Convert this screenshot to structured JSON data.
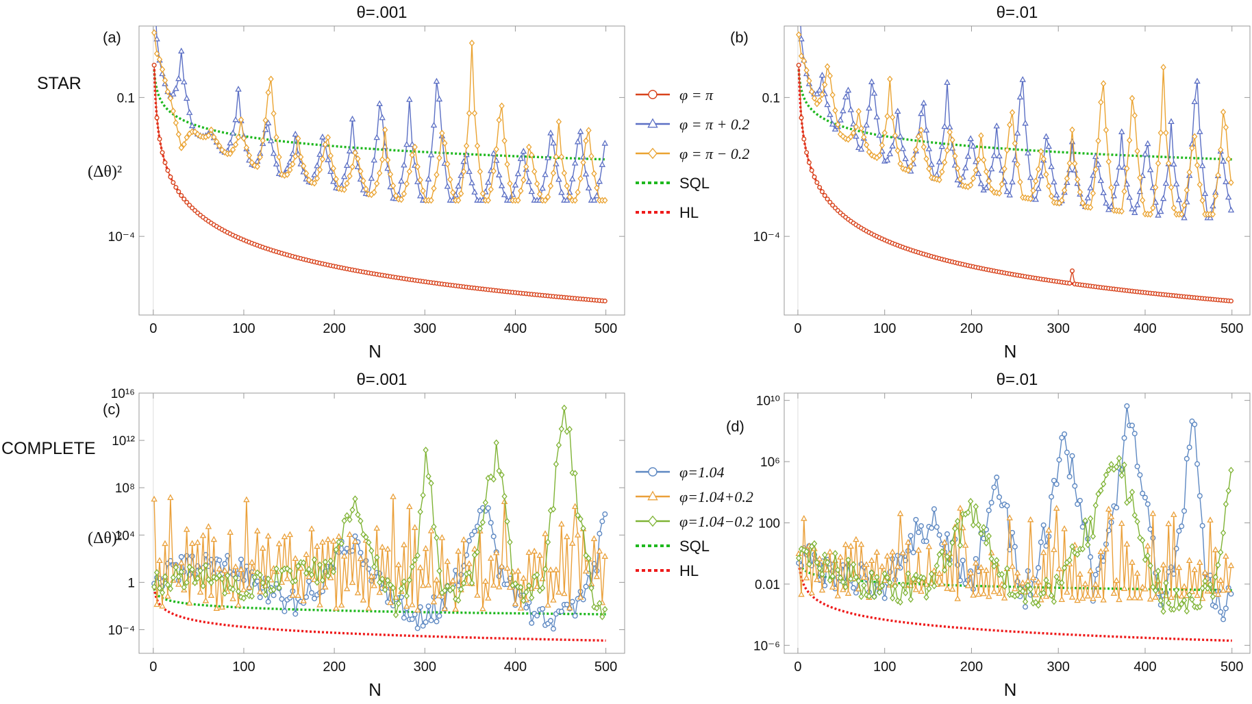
{
  "colors": {
    "red": "#d8431c",
    "blue": "#5b6fc4",
    "orange": "#eaa331",
    "green": "#1fb81f",
    "hl": "#ee1b1b",
    "cblue": "#5d88c2",
    "corange": "#eaa03a",
    "cgreen": "#7fb335"
  },
  "row_labels": {
    "star": "STAR",
    "complete": "COMPLETE"
  },
  "legend_top": [
    "φ = π",
    "φ = π + 0.2",
    "φ = π − 0.2",
    "SQL",
    "HL"
  ],
  "legend_bottom": [
    "φ=1.04",
    "φ=1.04+0.2",
    "φ=1.04−0.2",
    "SQL",
    "HL"
  ],
  "chart_data": [
    {
      "panel": "(a)",
      "type": "line",
      "title": "θ=.001",
      "xlabel": "N",
      "ylabel": "(Δθ)²",
      "xticks": [
        0,
        100,
        200,
        300,
        400,
        500
      ],
      "yticks": [
        {
          "value": 0.1,
          "label": "0.1"
        },
        {
          "value": 0.0001,
          "label": "10⁻⁴"
        }
      ],
      "yscale": "log",
      "xlim": [
        -5,
        510
      ],
      "ylim": [
        2e-06,
        3.5
      ],
      "series": [
        {
          "name": "φ = π",
          "marker": "circle",
          "kind": "hl_like",
          "x": [
            1,
            500
          ],
          "y": [
            0.5,
            4e-06
          ]
        },
        {
          "name": "φ = π + 0.2",
          "marker": "triangle",
          "kind": "peaks",
          "peaks_x": [
            31,
            63,
            94,
            126,
            157,
            188,
            220,
            251,
            283,
            314,
            345,
            377,
            408,
            440,
            471,
            502
          ],
          "peaks_y": [
            1.0,
            0.021,
            0.15,
            0.06,
            0.016,
            0.03,
            0.034,
            0.32,
            0.09,
            1.5,
            0.012,
            0.013,
            0.015,
            0.05,
            0.055,
            0.1
          ],
          "baseline_min": 0.0006
        },
        {
          "name": "φ = π − 0.2",
          "marker": "diamond",
          "kind": "peaks",
          "peaks_x": [
            3,
            32,
            64,
            97,
            129,
            160,
            192,
            224,
            256,
            288,
            320,
            352,
            384,
            416,
            448,
            480
          ],
          "peaks_y": [
            0.7,
            0.005,
            0.02,
            0.033,
            1.1,
            0.013,
            0.03,
            0.012,
            0.02,
            0.02,
            0.05,
            1.5,
            0.3,
            0.02,
            0.03,
            0.06
          ],
          "baseline_min": 0.0006
        },
        {
          "name": "SQL",
          "kind": "sql",
          "x": [
            1,
            500
          ],
          "y": [
            0.4,
            0.0046
          ]
        },
        {
          "name": "HL",
          "kind": "hl",
          "x": [
            1,
            500
          ],
          "y": [
            0.5,
            4e-06
          ]
        }
      ]
    },
    {
      "panel": "(b)",
      "type": "line",
      "title": "θ=.01",
      "xlabel": "N",
      "ylabel": "",
      "xticks": [
        0,
        100,
        200,
        300,
        400,
        500
      ],
      "yticks": [
        {
          "value": 0.1,
          "label": "0.1"
        },
        {
          "value": 0.0001,
          "label": "10⁻⁴"
        }
      ],
      "yscale": "log",
      "xlim": [
        -5,
        510
      ],
      "ylim": [
        2e-06,
        3.5
      ],
      "series": [
        {
          "name": "φ = π",
          "marker": "circle",
          "kind": "hl_like",
          "x": [
            1,
            500
          ],
          "y": [
            0.5,
            4e-06
          ],
          "spike_x": 316,
          "spike_y": 1.8e-05
        },
        {
          "name": "φ = π + 0.2",
          "marker": "triangle",
          "kind": "peaks",
          "peaks_x": [
            28,
            57,
            86,
            115,
            144,
            172,
            200,
            229,
            258,
            287,
            316,
            344,
            373,
            402,
            430,
            459,
            488
          ],
          "peaks_y": [
            0.3,
            0.32,
            0.7,
            0.05,
            0.24,
            0.21,
            0.028,
            0.024,
            1.6,
            0.04,
            0.011,
            0.012,
            0.018,
            0.031,
            0.03,
            2.0,
            0.02
          ],
          "baseline_min": 0.00025
        },
        {
          "name": "φ = π − 0.2",
          "marker": "diamond",
          "kind": "peaks",
          "peaks_x": [
            3,
            35,
            70,
            106,
            141,
            176,
            211,
            246,
            281,
            316,
            351,
            386,
            421,
            456,
            491
          ],
          "peaks_y": [
            0.6,
            1.1,
            0.05,
            0.25,
            0.04,
            0.04,
            0.015,
            0.18,
            0.015,
            0.02,
            1.5,
            0.6,
            0.45,
            0.05,
            0.25
          ],
          "baseline_min": 0.0003
        },
        {
          "name": "SQL",
          "kind": "sql",
          "x": [
            1,
            500
          ],
          "y": [
            0.4,
            0.0046
          ]
        },
        {
          "name": "HL",
          "kind": "hl",
          "x": [
            1,
            500
          ],
          "y": [
            0.5,
            4e-06
          ]
        }
      ]
    },
    {
      "panel": "(c)",
      "type": "line",
      "title": "θ=.001",
      "xlabel": "N",
      "ylabel": "(Δθ)²",
      "xticks": [
        0,
        100,
        200,
        300,
        400,
        500
      ],
      "yticks": [
        {
          "value": 1e+16,
          "label": "10¹⁶"
        },
        {
          "value": 1000000000000.0,
          "label": "10¹²"
        },
        {
          "value": 100000000.0,
          "label": "10⁸"
        },
        {
          "value": 10000.0,
          "label": "10⁴"
        },
        {
          "value": 1,
          "label": "1"
        },
        {
          "value": 0.0001,
          "label": "10⁻⁴"
        }
      ],
      "yscale": "log",
      "xlim": [
        -5,
        510
      ],
      "ylim": [
        1e-06,
        1e+16
      ],
      "series": [
        {
          "name": "φ=1.04",
          "marker": "circle",
          "kind": "random",
          "anchors_x": [
            1,
            40,
            80,
            120,
            150,
            180,
            220,
            250,
            290,
            320,
            350,
            370,
            380,
            400,
            420,
            440,
            470,
            490,
            500
          ],
          "anchors_y": [
            2,
            20,
            50,
            0.5,
            0.01,
            0.3,
            5000,
            1,
            0.001,
            0.01,
            500,
            10000000.0,
            10,
            0.1,
            0.001,
            0.001,
            0.01,
            100,
            5000000.0
          ]
        },
        {
          "name": "φ=1.04+0.2",
          "marker": "triangle",
          "kind": "random_alt",
          "anchors_x": [
            1,
            100,
            200,
            300,
            400,
            500
          ],
          "anchors_y": [
            3,
            10,
            5,
            1,
            1,
            20
          ],
          "hi": 1000000.0,
          "lo": 0.001
        },
        {
          "name": "φ=1.04−0.2",
          "marker": "diamond",
          "kind": "random",
          "anchors_x": [
            1,
            60,
            100,
            150,
            200,
            222,
            240,
            270,
            290,
            302,
            320,
            350,
            370,
            380,
            400,
            430,
            455,
            470,
            490,
            500
          ],
          "anchors_y": [
            1,
            3,
            0.5,
            2,
            30,
            10000000.0,
            100,
            0.01,
            10,
            100000000000.0,
            0.1,
            1,
            100000000.0,
            100000000000.0,
            0.1,
            1,
            1000000000000000.0,
            1000000.0,
            0.001,
            0.01
          ]
        },
        {
          "name": "SQL",
          "kind": "sql",
          "x": [
            1,
            500
          ],
          "y": [
            0.3,
            0.002
          ]
        },
        {
          "name": "HL",
          "kind": "hl",
          "x": [
            1,
            500
          ],
          "y": [
            0.35,
            1.2e-05
          ]
        }
      ]
    },
    {
      "panel": "(d)",
      "type": "line",
      "title": "θ=.01",
      "xlabel": "N",
      "ylabel": "",
      "xticks": [
        0,
        100,
        200,
        300,
        400,
        500
      ],
      "yticks": [
        {
          "value": 10000000000.0,
          "label": "10¹⁰"
        },
        {
          "value": 1000000.0,
          "label": "10⁶"
        },
        {
          "value": 100,
          "label": "100"
        },
        {
          "value": 0.01,
          "label": "0.01"
        },
        {
          "value": 1e-06,
          "label": "10⁻⁶"
        }
      ],
      "yscale": "log",
      "xlim": [
        -5,
        510
      ],
      "ylim": [
        3e-07,
        30000000000.0
      ],
      "series": [
        {
          "name": "φ=1.04",
          "marker": "circle",
          "kind": "random",
          "anchors_x": [
            1,
            60,
            100,
            140,
            160,
            200,
            230,
            260,
            290,
            305,
            320,
            340,
            360,
            380,
            400,
            420,
            440,
            455,
            470,
            490,
            500
          ],
          "anchors_y": [
            0.5,
            0.02,
            0.01,
            50,
            100,
            0.01,
            100000.0,
            0.001,
            100,
            10000000.0,
            100000.0,
            0.01,
            10,
            1000000000.0,
            10000.0,
            0.0001,
            10,
            1000000000.0,
            0.01,
            0.0001,
            0.01
          ]
        },
        {
          "name": "φ=1.04+0.2",
          "marker": "triangle",
          "kind": "random_alt",
          "anchors_x": [
            1,
            100,
            200,
            300,
            400,
            500
          ],
          "anchors_y": [
            0.3,
            0.02,
            0.01,
            0.005,
            0.005,
            0.005
          ],
          "hi": 30,
          "lo": 0.0005
        },
        {
          "name": "φ=1.04−0.2",
          "marker": "diamond",
          "kind": "random",
          "anchors_x": [
            1,
            80,
            150,
            200,
            230,
            260,
            300,
            340,
            360,
            370,
            390,
            420,
            450,
            480,
            500
          ],
          "anchors_y": [
            1,
            0.01,
            0.005,
            1000,
            0.1,
            0.002,
            0.01,
            100,
            1000000.0,
            2000000.0,
            100,
            0.001,
            0.001,
            0.01,
            1000000.0
          ]
        },
        {
          "name": "SQL",
          "kind": "sql",
          "x": [
            1,
            500
          ],
          "y": [
            0.35,
            0.004
          ]
        },
        {
          "name": "HL",
          "kind": "hl",
          "x": [
            1,
            500
          ],
          "y": [
            0.4,
            2e-06
          ]
        }
      ]
    }
  ]
}
